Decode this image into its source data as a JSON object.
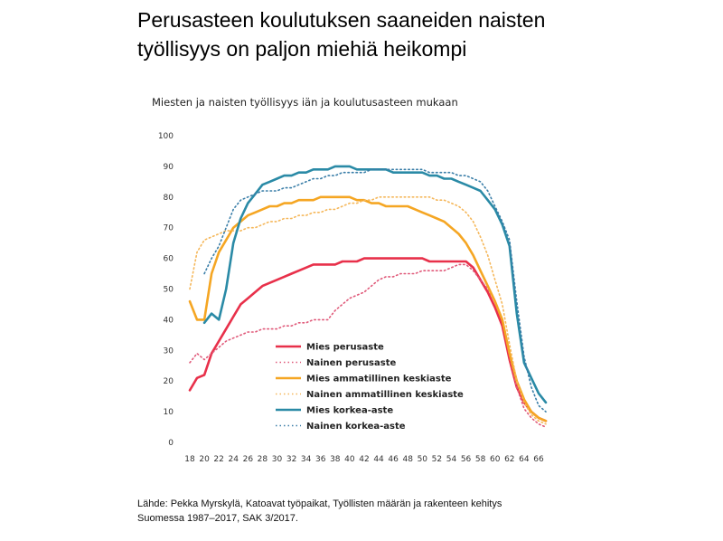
{
  "slide_title": "Perusasteen koulutuksen saaneiden naisten\ntyöllisyys on paljon miehiä heikompi",
  "source": "Lähde: Pekka Myrskylä, Katoavat työpaikat, Työllisten määrän ja rakenteen kehitys\nSuomessa 1987–2017, SAK 3/2017.",
  "chart_data": {
    "type": "line",
    "title": "Miesten ja naisten työllisyys iän ja koulutusasteen mukaan",
    "xlabel": "",
    "ylabel": "",
    "ylim": [
      0,
      100
    ],
    "xlim": [
      18,
      67
    ],
    "x_ticks": [
      "18",
      "20",
      "22",
      "24",
      "26",
      "28",
      "30",
      "32",
      "34",
      "36",
      "38",
      "40",
      "42",
      "44",
      "46",
      "48",
      "50",
      "52",
      "54",
      "56",
      "58",
      "60",
      "62",
      "64",
      "66"
    ],
    "y_ticks": [
      "0",
      "10",
      "20",
      "30",
      "40",
      "50",
      "60",
      "70",
      "80",
      "90",
      "100"
    ],
    "legend_position": "bottom-left",
    "grid": false,
    "series": [
      {
        "name": "Mies perusaste",
        "color": "#e8304a",
        "style": "solid",
        "x": [
          18,
          19,
          20,
          21,
          22,
          23,
          24,
          25,
          26,
          27,
          28,
          29,
          30,
          31,
          32,
          33,
          34,
          35,
          36,
          37,
          38,
          39,
          40,
          41,
          42,
          43,
          44,
          45,
          46,
          47,
          48,
          49,
          50,
          51,
          52,
          53,
          54,
          55,
          56,
          57,
          58,
          59,
          60,
          61,
          62,
          63,
          64,
          65,
          66,
          67
        ],
        "y": [
          17,
          21,
          22,
          29,
          33,
          37,
          41,
          45,
          47,
          49,
          51,
          52,
          53,
          54,
          55,
          56,
          57,
          58,
          58,
          58,
          58,
          59,
          59,
          59,
          60,
          60,
          60,
          60,
          60,
          60,
          60,
          60,
          60,
          59,
          59,
          59,
          59,
          59,
          59,
          57,
          53,
          49,
          44,
          38,
          27,
          18,
          13,
          10,
          8,
          7
        ]
      },
      {
        "name": "Nainen perusaste",
        "color": "#e05a7a",
        "style": "dotted",
        "x": [
          18,
          19,
          20,
          21,
          22,
          23,
          24,
          25,
          26,
          27,
          28,
          29,
          30,
          31,
          32,
          33,
          34,
          35,
          36,
          37,
          38,
          39,
          40,
          41,
          42,
          43,
          44,
          45,
          46,
          47,
          48,
          49,
          50,
          51,
          52,
          53,
          54,
          55,
          56,
          57,
          58,
          59,
          60,
          61,
          62,
          63,
          64,
          65,
          66,
          67
        ],
        "y": [
          26,
          29,
          27,
          29,
          31,
          33,
          34,
          35,
          36,
          36,
          37,
          37,
          37,
          38,
          38,
          39,
          39,
          40,
          40,
          40,
          43,
          45,
          47,
          48,
          49,
          51,
          53,
          54,
          54,
          55,
          55,
          55,
          56,
          56,
          56,
          56,
          57,
          58,
          58,
          56,
          53,
          50,
          46,
          40,
          28,
          18,
          11,
          8,
          6,
          5
        ]
      },
      {
        "name": "Mies ammatillinen keskiaste",
        "color": "#f5a623",
        "style": "solid",
        "x": [
          18,
          19,
          20,
          21,
          22,
          23,
          24,
          25,
          26,
          27,
          28,
          29,
          30,
          31,
          32,
          33,
          34,
          35,
          36,
          37,
          38,
          39,
          40,
          41,
          42,
          43,
          44,
          45,
          46,
          47,
          48,
          49,
          50,
          51,
          52,
          53,
          54,
          55,
          56,
          57,
          58,
          59,
          60,
          61,
          62,
          63,
          64,
          65,
          66,
          67
        ],
        "y": [
          46,
          40,
          40,
          55,
          62,
          66,
          70,
          72,
          74,
          75,
          76,
          77,
          77,
          78,
          78,
          79,
          79,
          79,
          80,
          80,
          80,
          80,
          80,
          79,
          79,
          78,
          78,
          77,
          77,
          77,
          77,
          76,
          75,
          74,
          73,
          72,
          70,
          68,
          65,
          61,
          56,
          51,
          46,
          40,
          29,
          20,
          14,
          10,
          8,
          7
        ]
      },
      {
        "name": "Nainen ammatillinen keskiaste",
        "color": "#f5b75a",
        "style": "dotted",
        "x": [
          18,
          19,
          20,
          21,
          22,
          23,
          24,
          25,
          26,
          27,
          28,
          29,
          30,
          31,
          32,
          33,
          34,
          35,
          36,
          37,
          38,
          39,
          40,
          41,
          42,
          43,
          44,
          45,
          46,
          47,
          48,
          49,
          50,
          51,
          52,
          53,
          54,
          55,
          56,
          57,
          58,
          59,
          60,
          61,
          62,
          63,
          64,
          65,
          66,
          67
        ],
        "y": [
          50,
          62,
          66,
          67,
          68,
          69,
          69,
          69,
          70,
          70,
          71,
          72,
          72,
          73,
          73,
          74,
          74,
          75,
          75,
          76,
          76,
          77,
          78,
          78,
          79,
          79,
          80,
          80,
          80,
          80,
          80,
          80,
          80,
          80,
          79,
          79,
          78,
          77,
          75,
          72,
          67,
          61,
          53,
          45,
          32,
          20,
          13,
          9,
          7,
          6
        ]
      },
      {
        "name": "Mies korkea-aste",
        "color": "#2a8aa6",
        "style": "solid",
        "x": [
          20,
          21,
          22,
          23,
          24,
          25,
          26,
          27,
          28,
          29,
          30,
          31,
          32,
          33,
          34,
          35,
          36,
          37,
          38,
          39,
          40,
          41,
          42,
          43,
          44,
          45,
          46,
          47,
          48,
          49,
          50,
          51,
          52,
          53,
          54,
          55,
          56,
          57,
          58,
          59,
          60,
          61,
          62,
          63,
          64,
          65,
          66,
          67
        ],
        "y": [
          39,
          42,
          40,
          50,
          65,
          73,
          78,
          81,
          84,
          85,
          86,
          87,
          87,
          88,
          88,
          89,
          89,
          89,
          90,
          90,
          90,
          89,
          89,
          89,
          89,
          89,
          88,
          88,
          88,
          88,
          88,
          87,
          87,
          86,
          86,
          85,
          84,
          83,
          82,
          79,
          76,
          71,
          64,
          42,
          26,
          21,
          16,
          13
        ]
      },
      {
        "name": "Nainen korkea-aste",
        "color": "#3a7ea8",
        "style": "dotted",
        "x": [
          20,
          21,
          22,
          23,
          24,
          25,
          26,
          27,
          28,
          29,
          30,
          31,
          32,
          33,
          34,
          35,
          36,
          37,
          38,
          39,
          40,
          41,
          42,
          43,
          44,
          45,
          46,
          47,
          48,
          49,
          50,
          51,
          52,
          53,
          54,
          55,
          56,
          57,
          58,
          59,
          60,
          61,
          62,
          63,
          64,
          65,
          66,
          67
        ],
        "y": [
          55,
          60,
          64,
          70,
          76,
          79,
          80,
          81,
          82,
          82,
          82,
          83,
          83,
          84,
          85,
          86,
          86,
          87,
          87,
          88,
          88,
          88,
          88,
          89,
          89,
          89,
          89,
          89,
          89,
          89,
          89,
          88,
          88,
          88,
          88,
          87,
          87,
          86,
          85,
          82,
          77,
          72,
          66,
          46,
          28,
          18,
          12,
          10
        ]
      }
    ]
  }
}
